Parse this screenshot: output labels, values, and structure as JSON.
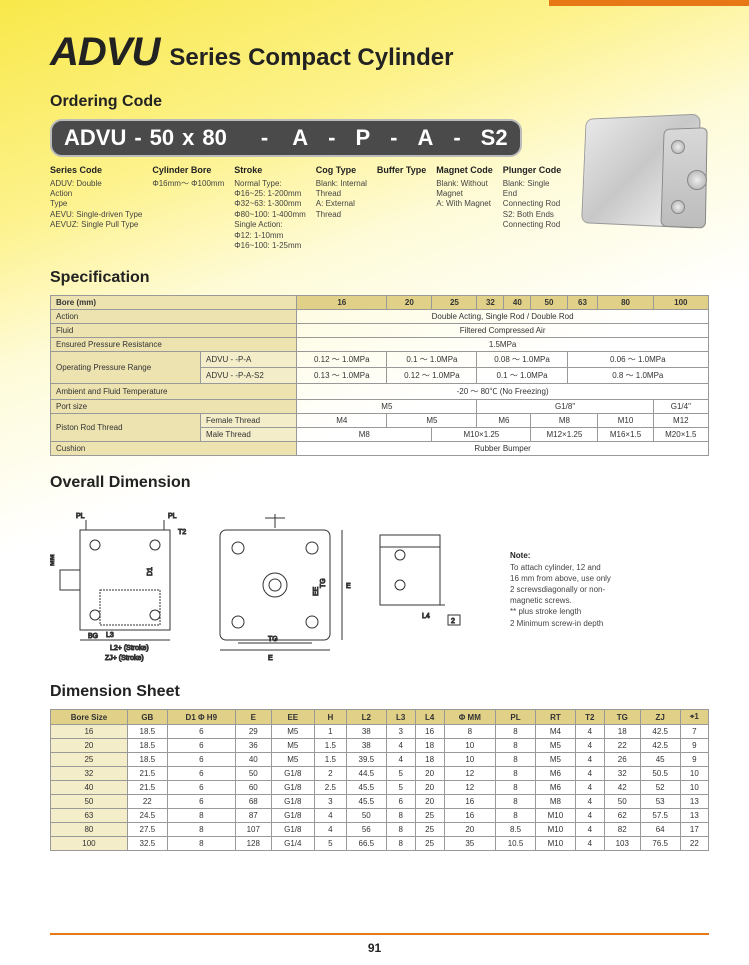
{
  "page_number": "91",
  "title_main": "ADVU",
  "title_sub": "Series Compact Cylinder",
  "section_ordering": "Ordering Code",
  "section_spec": "Specification",
  "section_overall": "Overall Dimension",
  "section_dimsheet": "Dimension Sheet",
  "code": {
    "p1": "ADVU",
    "d1": "-",
    "p2": "50",
    "x": "x",
    "p3": "80",
    "d2": "-",
    "p4": "A",
    "d3": "-",
    "p5": "P",
    "d4": "-",
    "p6": "A",
    "d5": "-",
    "p7": "S2"
  },
  "legend": {
    "series": {
      "h": "Series Code",
      "l1": "ADUV: Double",
      "l2": "Action",
      "l3": "Type",
      "l4": "AEVU: Single-driven Type",
      "l5": "AEVUZ: Single Pull Type"
    },
    "bore": {
      "h": "Cylinder Bore",
      "l1": "Φ16mm～ Φ100mm"
    },
    "stroke": {
      "h": "Stroke",
      "l1": "Normal Type:",
      "l2": "Φ16~25: 1-200mm",
      "l3": "Φ32~63: 1-300mm",
      "l4": "Φ80~100: 1-400mm",
      "l5": "Single Action:",
      "l6": "Φ12: 1-10mm",
      "l7": "Φ16~100: 1-25mm"
    },
    "cog": {
      "h": "Cog Type",
      "l1": "Blank: Internal",
      "l2": "Thread",
      "l3": "A: External",
      "l4": "Thread"
    },
    "buffer": {
      "h": "Buffer Type"
    },
    "magnet": {
      "h": "Magnet Code",
      "l1": "Blank: Without",
      "l2": "Magnet",
      "l3": "A: With Magnet"
    },
    "plunger": {
      "h": "Plunger Code",
      "l1": "Blank: Single",
      "l2": "End",
      "l3": "Connecting Rod",
      "l4": "S2: Both Ends",
      "l5": "Connecting Rod"
    }
  },
  "spec": {
    "header": {
      "bore": "Bore (mm)",
      "c": [
        "16",
        "20",
        "25",
        "32",
        "40",
        "50",
        "63",
        "80",
        "100"
      ]
    },
    "rows": {
      "action": {
        "label": "Action",
        "val": "Double Acting,  Single Rod / Double Rod"
      },
      "fluid": {
        "label": "Fluid",
        "val": "Filtered Compressed Air"
      },
      "epr": {
        "label": "Ensured Pressure Resistance",
        "val": "1.5MPa"
      },
      "op_range_label": "Operating Pressure Range",
      "op1": {
        "sub": "ADVU - -P-A",
        "c": [
          "0.12 ～ 1.0MPa",
          "0.1 ～ 1.0MPa",
          "0.08 ～ 1.0MPa",
          "0.06 ～ 1.0MPa"
        ]
      },
      "op2": {
        "sub": "ADVU - -P-A-S2",
        "c": [
          "0.13 ～ 1.0MPa",
          "0.12 ～ 1.0MPa",
          "0.1 ～ 1.0MPa",
          "0.8 ～ 1.0MPa"
        ]
      },
      "temp": {
        "label": "Ambient and Fluid Temperature",
        "val": "-20 ～ 80℃ (No Freezing)"
      },
      "port": {
        "label": "Port size",
        "c": [
          "M5",
          "G1/8\"",
          "G1/4\""
        ]
      },
      "piston_label": "Piston Rod Thread",
      "female": {
        "sub": "Female Thread",
        "c": [
          "M4",
          "M5",
          "M6",
          "M8",
          "M10",
          "M12"
        ]
      },
      "male": {
        "sub": "Male Thread",
        "c": [
          "M8",
          "M10×1.25",
          "M12×1.25",
          "M16×1.5",
          "M20×1.5"
        ]
      },
      "cushion": {
        "label": "Cushion",
        "val": "Rubber Bumper"
      }
    }
  },
  "note": {
    "h": "Note:",
    "l1": "To attach cylinder, 12 and",
    "l2": "16 mm from above, use only",
    "l3": "2 screwsdiagonally or non-",
    "l4": "magnetic screws.",
    "l5": "** plus stroke length",
    "l6": "2 Minimum screw-in depth"
  },
  "dim": {
    "header": [
      "Bore Size",
      "GB",
      "D1 Φ H9",
      "E",
      "EE",
      "H",
      "L2",
      "L3",
      "L4",
      "Φ MM",
      "PL",
      "RT",
      "T2",
      "TG",
      "ZJ",
      "⌖1"
    ],
    "rows": [
      [
        "16",
        "18.5",
        "6",
        "29",
        "M5",
        "1",
        "38",
        "3",
        "16",
        "8",
        "8",
        "M4",
        "4",
        "18",
        "42.5",
        "7"
      ],
      [
        "20",
        "18.5",
        "6",
        "36",
        "M5",
        "1.5",
        "38",
        "4",
        "18",
        "10",
        "8",
        "M5",
        "4",
        "22",
        "42.5",
        "9"
      ],
      [
        "25",
        "18.5",
        "6",
        "40",
        "M5",
        "1.5",
        "39.5",
        "4",
        "18",
        "10",
        "8",
        "M5",
        "4",
        "26",
        "45",
        "9"
      ],
      [
        "32",
        "21.5",
        "6",
        "50",
        "G1/8",
        "2",
        "44.5",
        "5",
        "20",
        "12",
        "8",
        "M6",
        "4",
        "32",
        "50.5",
        "10"
      ],
      [
        "40",
        "21.5",
        "6",
        "60",
        "G1/8",
        "2.5",
        "45.5",
        "5",
        "20",
        "12",
        "8",
        "M6",
        "4",
        "42",
        "52",
        "10"
      ],
      [
        "50",
        "22",
        "6",
        "68",
        "G1/8",
        "3",
        "45.5",
        "6",
        "20",
        "16",
        "8",
        "M8",
        "4",
        "50",
        "53",
        "13"
      ],
      [
        "63",
        "24.5",
        "8",
        "87",
        "G1/8",
        "4",
        "50",
        "8",
        "25",
        "16",
        "8",
        "M10",
        "4",
        "62",
        "57.5",
        "13"
      ],
      [
        "80",
        "27.5",
        "8",
        "107",
        "G1/8",
        "4",
        "56",
        "8",
        "25",
        "20",
        "8.5",
        "M10",
        "4",
        "82",
        "64",
        "17"
      ],
      [
        "100",
        "32.5",
        "8",
        "128",
        "G1/4",
        "5",
        "66.5",
        "8",
        "25",
        "35",
        "10.5",
        "M10",
        "4",
        "103",
        "76.5",
        "22"
      ]
    ]
  },
  "colors": {
    "accent_orange": "#e67816",
    "header_bg": "#e0d088",
    "rowlabel_bg": "#ece3b0",
    "sublabel_bg": "#f3edc9",
    "code_bg": "#4a4a4a"
  }
}
